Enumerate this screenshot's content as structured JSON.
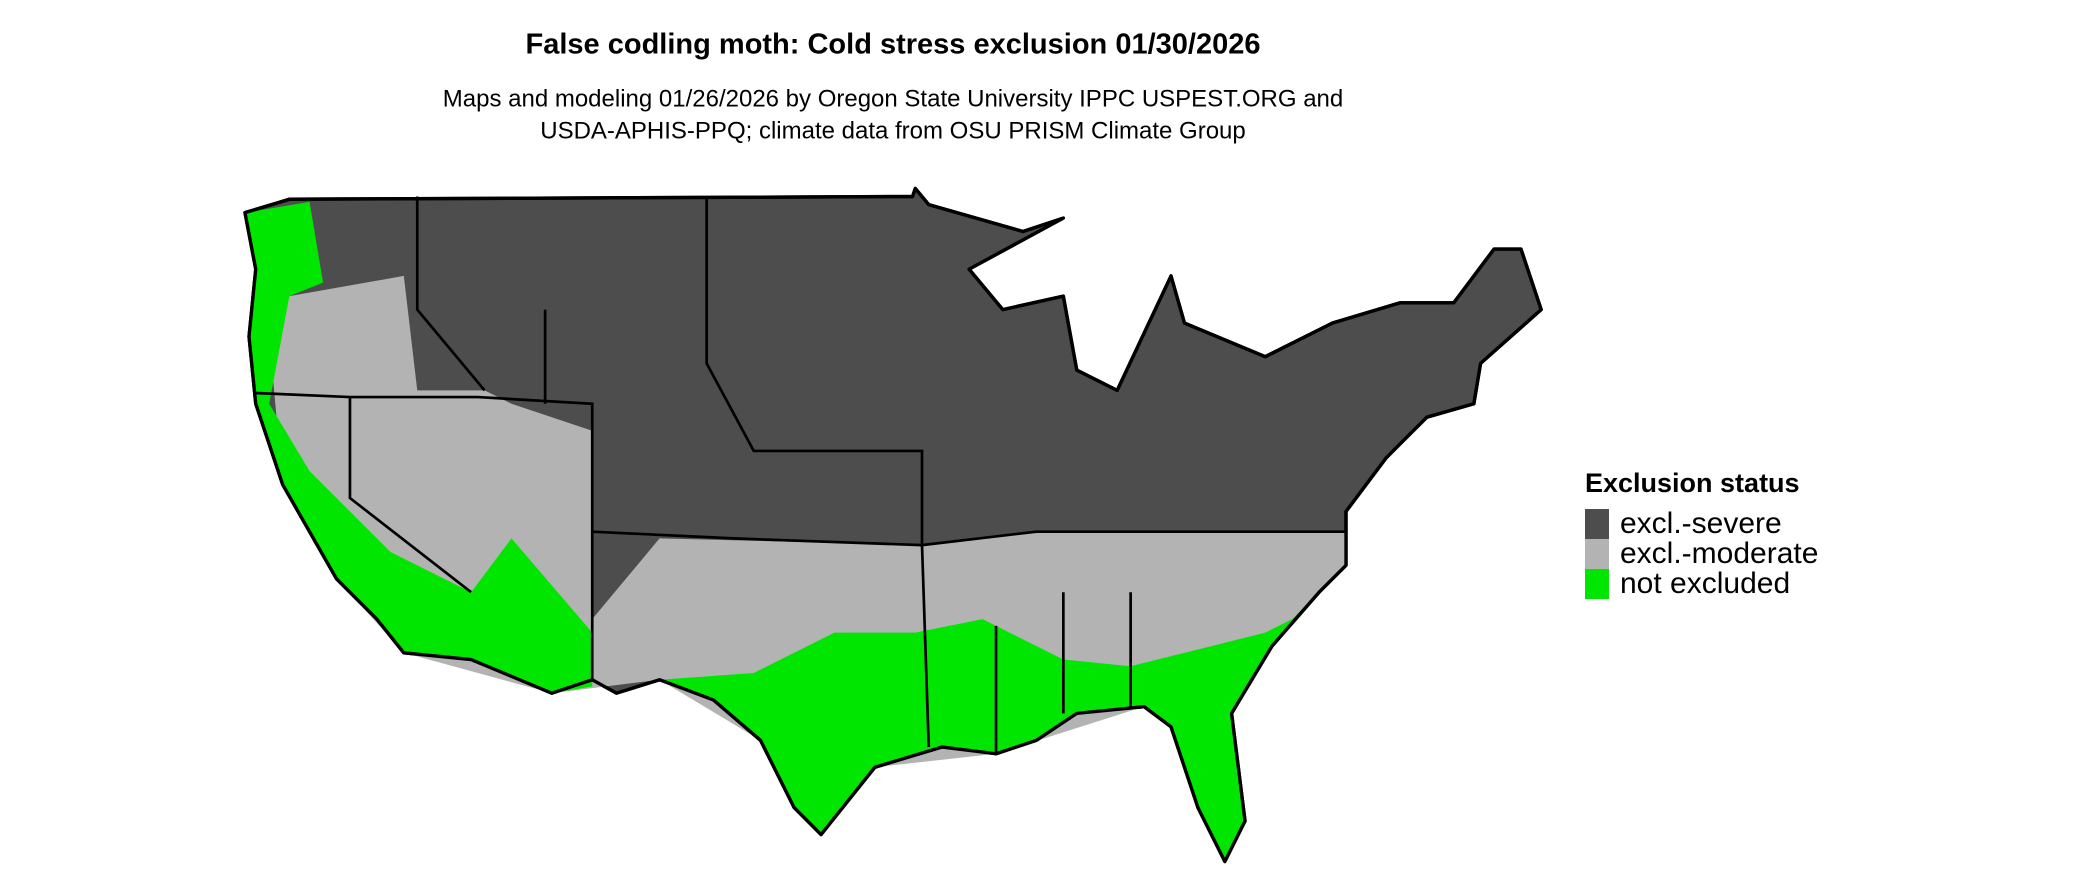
{
  "title": "False codling moth: Cold stress exclusion 01/30/2026",
  "subtitle": [
    "Maps and modeling 01/26/2026 by Oregon State University IPPC USPEST.ORG and",
    "USDA-APHIS-PPQ; climate data from OSU PRISM Climate Group"
  ],
  "legend": {
    "title": "Exclusion status",
    "items": [
      {
        "label": "excl.-severe",
        "color": "#4d4d4d"
      },
      {
        "label": "excl.-moderate",
        "color": "#b3b3b3"
      },
      {
        "label": "not excluded",
        "color": "#00e600"
      }
    ]
  }
}
